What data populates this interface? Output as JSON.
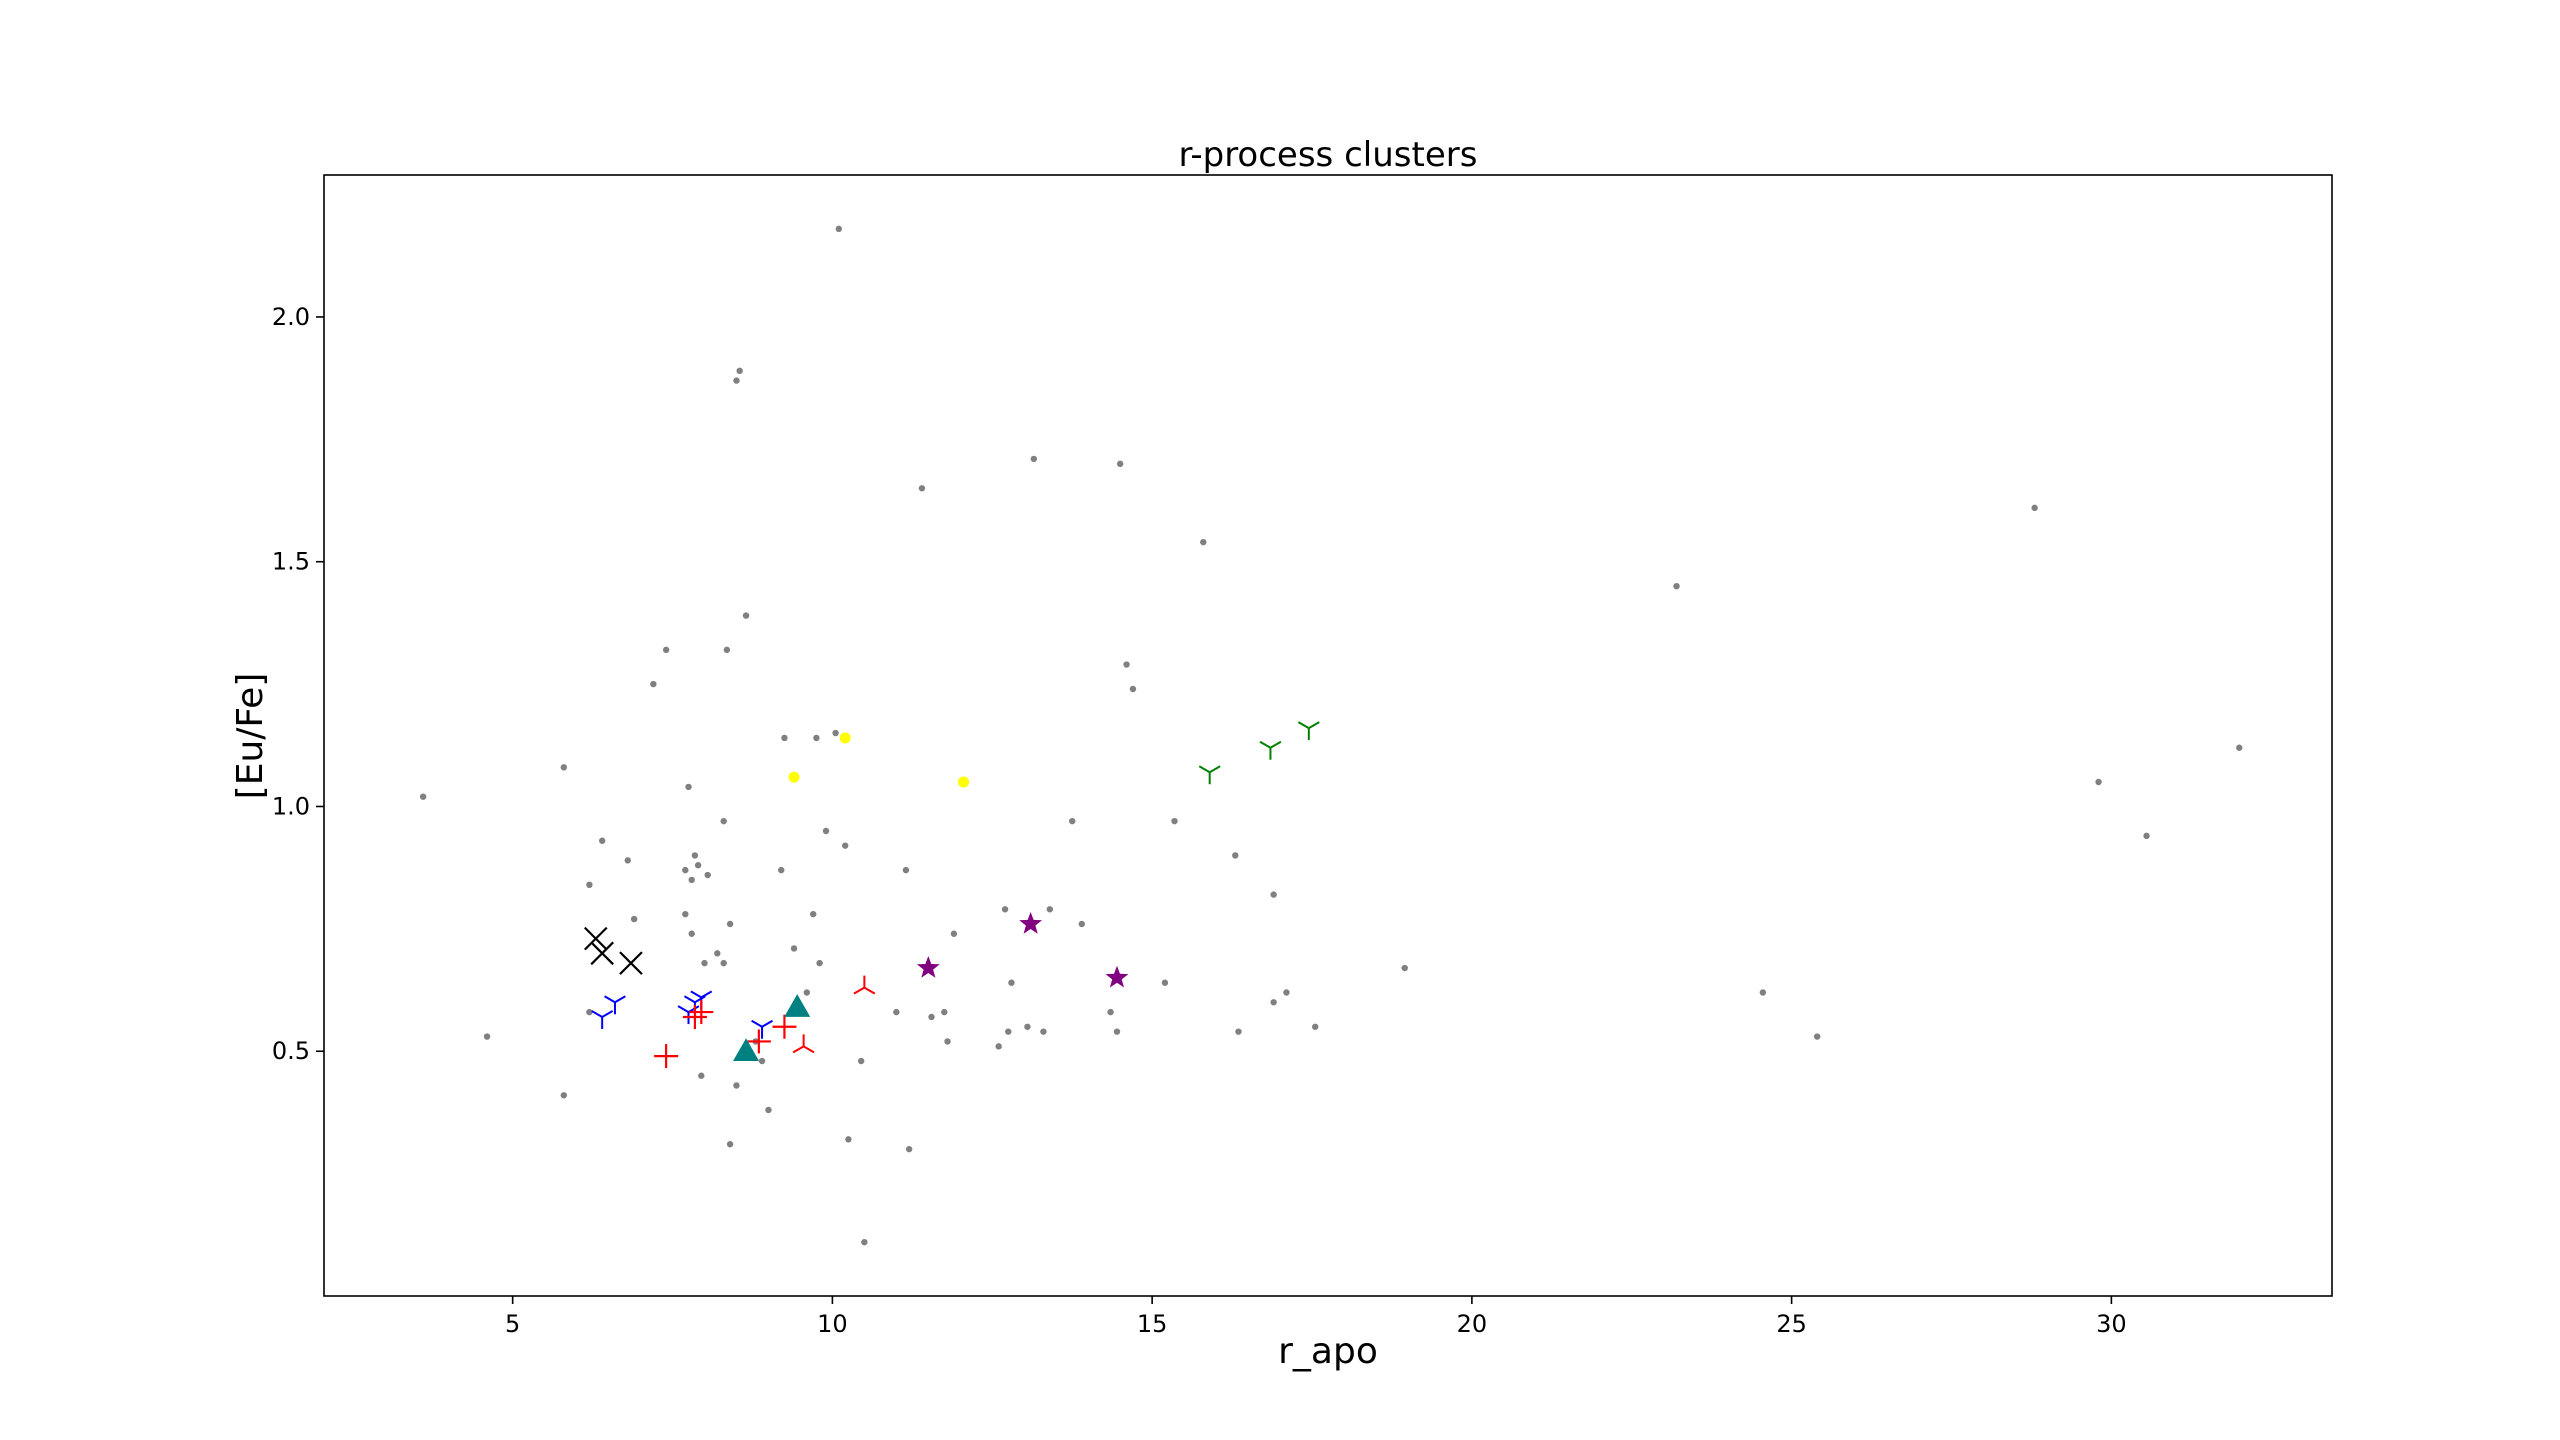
{
  "chart_data": {
    "type": "scatter",
    "title": "r-process clusters",
    "xlabel": "r_apo",
    "ylabel": "[Eu/Fe]",
    "xlim": [
      2.05,
      33.45
    ],
    "ylim": [
      0.0,
      2.29
    ],
    "xticks": [
      5,
      10,
      15,
      20,
      25,
      30
    ],
    "yticks": [
      0.5,
      1.0,
      1.5,
      2.0
    ],
    "grid": false,
    "legend": "none",
    "series": [
      {
        "marker": "dot",
        "color": "#808080",
        "points": [
          [
            3.6,
            1.02
          ],
          [
            4.6,
            0.53
          ],
          [
            5.8,
            1.08
          ],
          [
            5.8,
            0.41
          ],
          [
            6.2,
            0.84
          ],
          [
            6.2,
            0.58
          ],
          [
            6.4,
            0.93
          ],
          [
            6.8,
            0.89
          ],
          [
            6.9,
            0.77
          ],
          [
            7.2,
            1.25
          ],
          [
            7.4,
            1.32
          ],
          [
            7.7,
            0.87
          ],
          [
            7.7,
            0.78
          ],
          [
            7.75,
            1.04
          ],
          [
            7.8,
            0.85
          ],
          [
            7.8,
            0.74
          ],
          [
            7.85,
            0.9
          ],
          [
            7.9,
            0.88
          ],
          [
            7.95,
            0.45
          ],
          [
            8.0,
            0.68
          ],
          [
            8.05,
            0.86
          ],
          [
            8.2,
            0.7
          ],
          [
            8.3,
            0.97
          ],
          [
            8.3,
            0.68
          ],
          [
            8.35,
            1.32
          ],
          [
            8.4,
            0.76
          ],
          [
            8.4,
            0.31
          ],
          [
            8.5,
            0.43
          ],
          [
            8.5,
            1.87
          ],
          [
            8.55,
            1.89
          ],
          [
            8.65,
            1.39
          ],
          [
            8.8,
            0.52
          ],
          [
            8.9,
            0.48
          ],
          [
            9.0,
            0.38
          ],
          [
            9.2,
            0.87
          ],
          [
            9.25,
            1.14
          ],
          [
            9.4,
            0.71
          ],
          [
            9.6,
            0.62
          ],
          [
            9.7,
            0.78
          ],
          [
            9.75,
            1.14
          ],
          [
            9.8,
            0.68
          ],
          [
            9.9,
            0.95
          ],
          [
            10.05,
            1.15
          ],
          [
            10.1,
            2.18
          ],
          [
            10.2,
            0.92
          ],
          [
            10.25,
            0.32
          ],
          [
            10.45,
            0.48
          ],
          [
            10.5,
            0.11
          ],
          [
            11.0,
            0.58
          ],
          [
            11.15,
            0.87
          ],
          [
            11.2,
            0.3
          ],
          [
            11.4,
            1.65
          ],
          [
            11.55,
            0.57
          ],
          [
            11.75,
            0.58
          ],
          [
            11.8,
            0.52
          ],
          [
            11.9,
            0.74
          ],
          [
            12.6,
            0.51
          ],
          [
            12.7,
            0.79
          ],
          [
            12.75,
            0.54
          ],
          [
            12.8,
            0.64
          ],
          [
            13.05,
            0.55
          ],
          [
            13.15,
            1.71
          ],
          [
            13.3,
            0.54
          ],
          [
            13.4,
            0.79
          ],
          [
            13.75,
            0.97
          ],
          [
            13.9,
            0.76
          ],
          [
            14.35,
            0.58
          ],
          [
            14.45,
            0.54
          ],
          [
            14.5,
            1.7
          ],
          [
            14.6,
            1.29
          ],
          [
            14.7,
            1.24
          ],
          [
            15.2,
            0.64
          ],
          [
            15.35,
            0.97
          ],
          [
            15.8,
            1.54
          ],
          [
            16.3,
            0.9
          ],
          [
            16.35,
            0.54
          ],
          [
            16.9,
            0.82
          ],
          [
            16.9,
            0.6
          ],
          [
            17.1,
            0.62
          ],
          [
            17.55,
            0.55
          ],
          [
            18.95,
            0.67
          ],
          [
            23.2,
            1.45
          ],
          [
            24.55,
            0.62
          ],
          [
            25.4,
            0.53
          ],
          [
            28.8,
            1.61
          ],
          [
            29.8,
            1.05
          ],
          [
            30.55,
            0.94
          ],
          [
            32.0,
            1.12
          ]
        ]
      },
      {
        "marker": "dot",
        "color": "#ffff00",
        "points": [
          [
            9.4,
            1.06
          ],
          [
            10.2,
            1.14
          ],
          [
            12.05,
            1.05
          ]
        ]
      },
      {
        "marker": "x",
        "color": "#000000",
        "points": [
          [
            6.3,
            0.73
          ],
          [
            6.4,
            0.7
          ],
          [
            6.85,
            0.68
          ]
        ]
      },
      {
        "marker": "tri_up",
        "color": "#0000ff",
        "points": [
          [
            6.4,
            0.57
          ],
          [
            6.6,
            0.6
          ],
          [
            7.75,
            0.58
          ],
          [
            7.85,
            0.6
          ],
          [
            7.95,
            0.61
          ],
          [
            8.9,
            0.55
          ]
        ]
      },
      {
        "marker": "plus",
        "color": "#ff0000",
        "points": [
          [
            7.4,
            0.49
          ],
          [
            7.85,
            0.57
          ],
          [
            7.95,
            0.58
          ],
          [
            8.85,
            0.52
          ],
          [
            9.25,
            0.55
          ]
        ]
      },
      {
        "marker": "tri_down",
        "color": "#ff0000",
        "points": [
          [
            9.55,
            0.51
          ],
          [
            10.5,
            0.63
          ]
        ]
      },
      {
        "marker": "triangle",
        "color": "#008080",
        "points": [
          [
            8.65,
            0.5
          ],
          [
            9.45,
            0.59
          ]
        ]
      },
      {
        "marker": "star",
        "color": "#800080",
        "points": [
          [
            11.5,
            0.67
          ],
          [
            13.1,
            0.76
          ],
          [
            14.45,
            0.65
          ]
        ]
      },
      {
        "marker": "tri_up",
        "color": "#008000",
        "points": [
          [
            15.9,
            1.07
          ],
          [
            16.85,
            1.12
          ],
          [
            17.45,
            1.16
          ]
        ]
      }
    ]
  }
}
